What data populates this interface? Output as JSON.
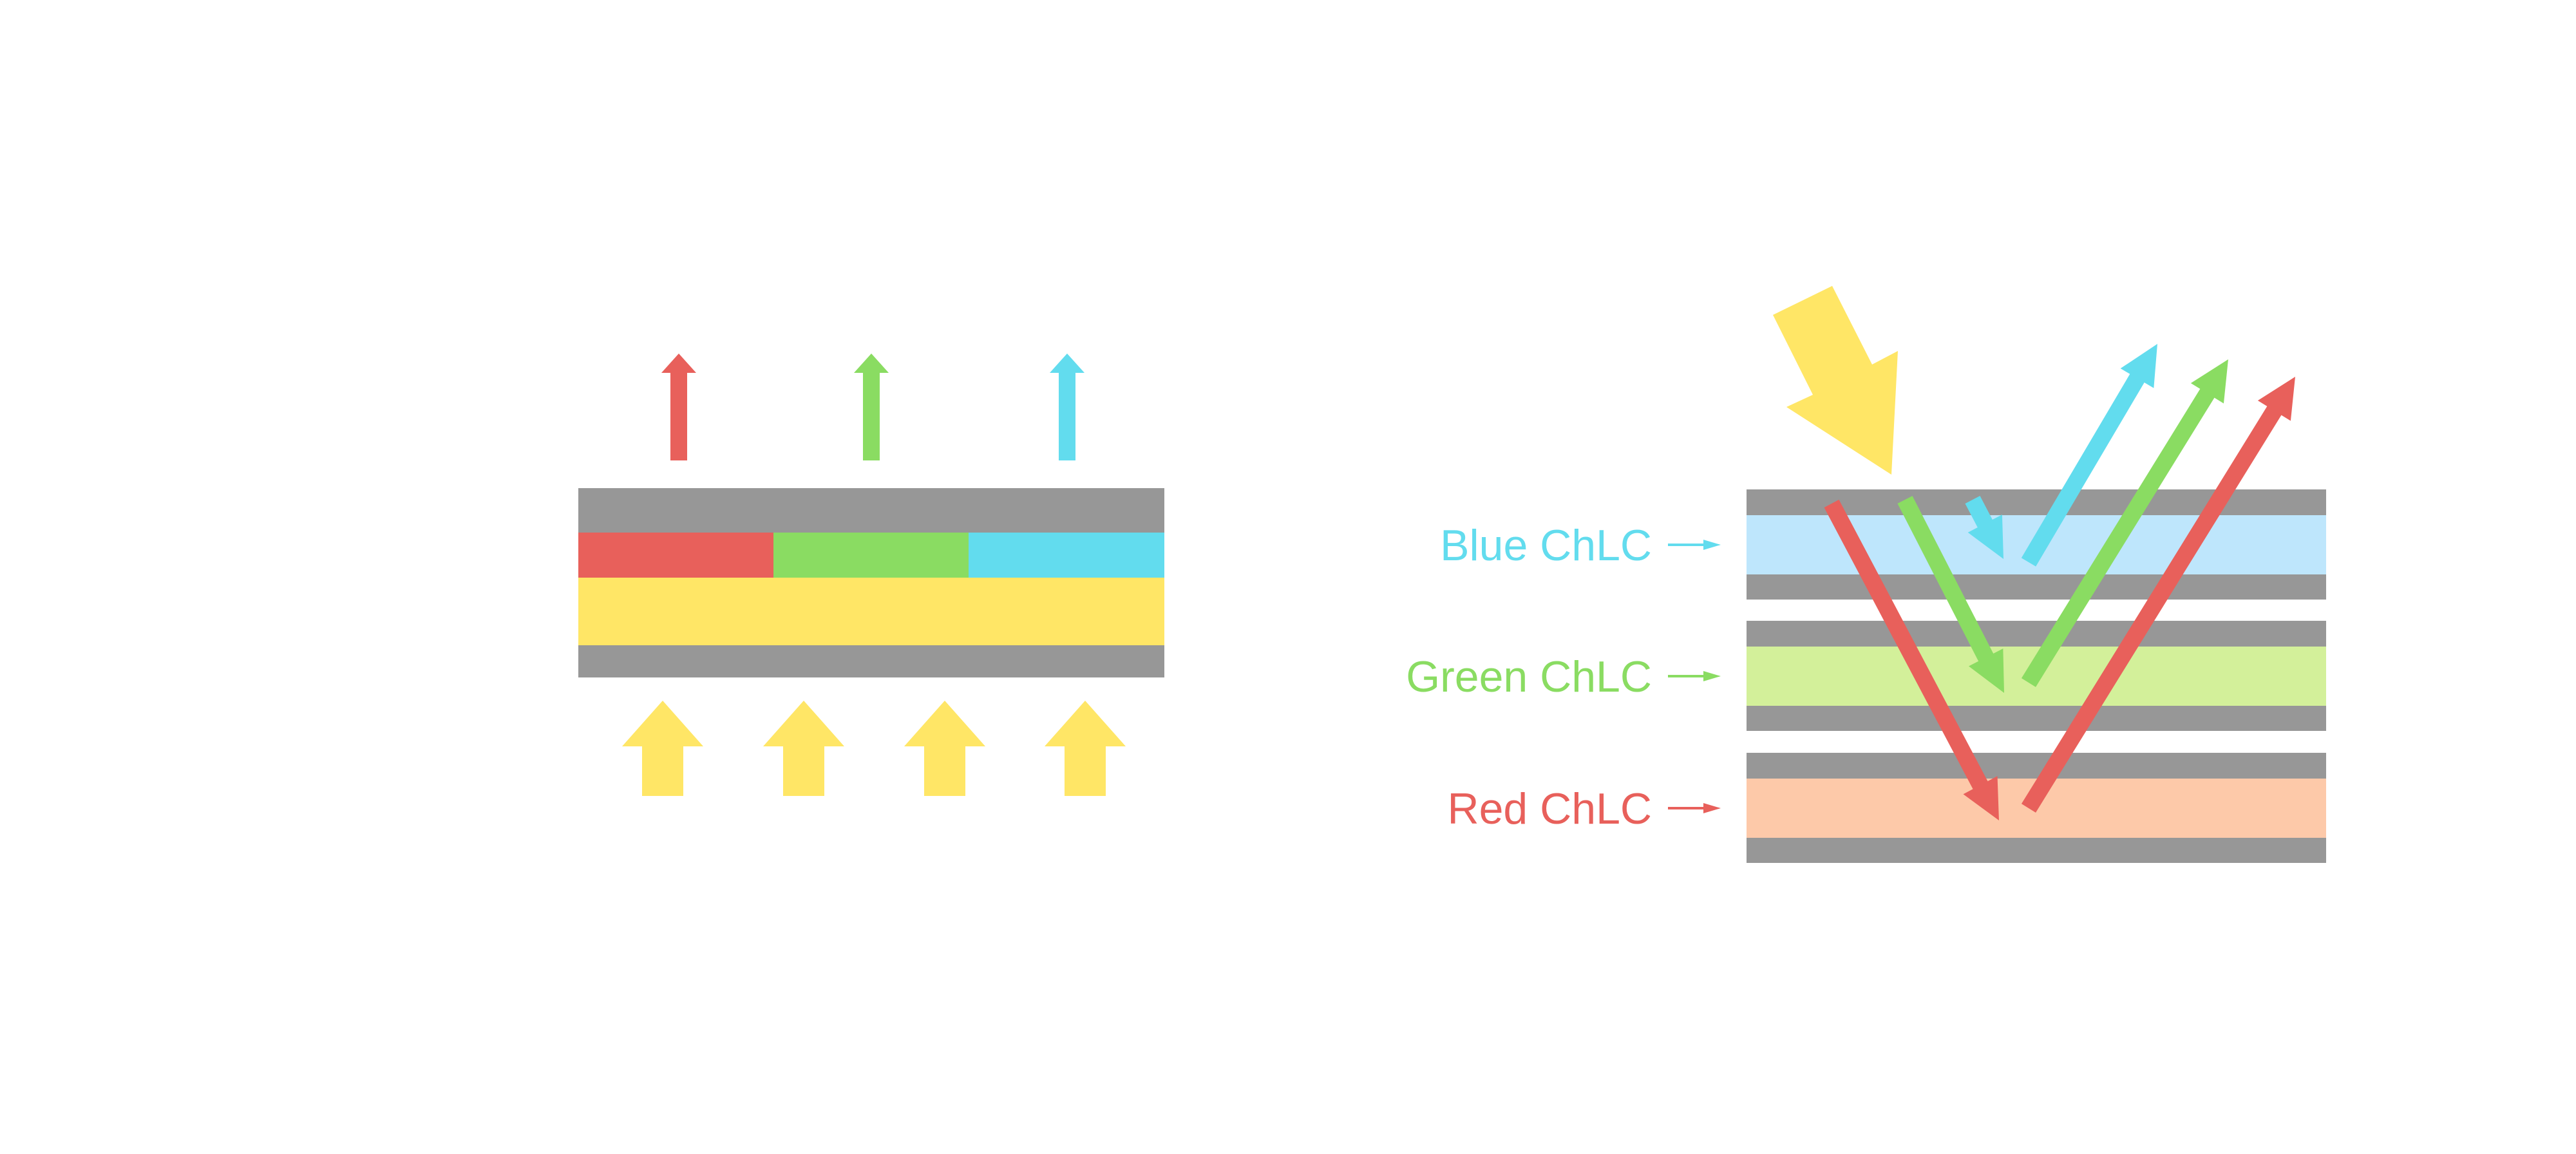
{
  "colors": {
    "substrate": "#979797",
    "red": "#E8605B",
    "green": "#8ADC62",
    "blue": "#62DCEE",
    "light": "#FFE666",
    "blue_layer": "#BEE6FC",
    "green_layer": "#D3F09A",
    "red_layer": "#FDC9A9"
  },
  "right_diagram": {
    "layers": [
      {
        "label": "Blue ChLC",
        "color_key": "blue",
        "fill_key": "blue_layer"
      },
      {
        "label": "Green ChLC",
        "color_key": "green",
        "fill_key": "green_layer"
      },
      {
        "label": "Red ChLC",
        "color_key": "red",
        "fill_key": "red_layer"
      }
    ]
  }
}
